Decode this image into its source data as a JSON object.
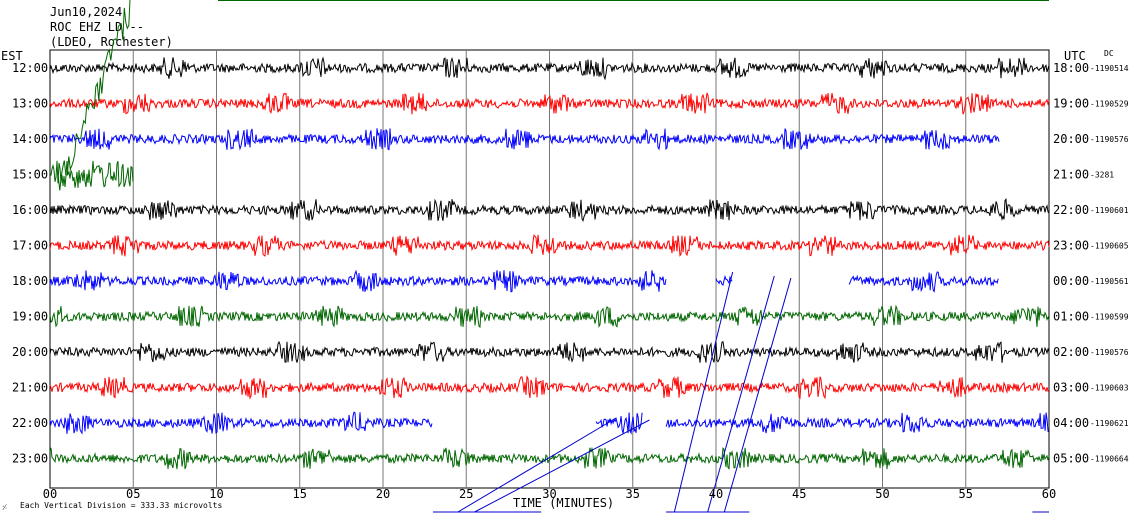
{
  "header": {
    "date": "Jun10,2024",
    "station": "ROC EHZ LD --",
    "network": "(LDEO, Rochester)"
  },
  "left_axis_label": "EST",
  "right_axis_label": "UTC",
  "dc_label": "DC",
  "xlabel": "TIME (MINUTES)",
  "footer_note": "Each Vertical Division =  333.33 microvolts",
  "chart_data": {
    "type": "line",
    "title": "",
    "xlabel": "TIME (MINUTES)",
    "xlim": [
      0,
      60
    ],
    "x_ticks": [
      "00",
      "05",
      "10",
      "15",
      "20",
      "25",
      "30",
      "35",
      "40",
      "45",
      "50",
      "55",
      "60"
    ],
    "grid": "vertical lines every 5 minutes",
    "colors": {
      "black": "#000000",
      "red": "#ff0000",
      "blue": "#0000ff",
      "green": "#006600"
    },
    "traces": [
      {
        "est": "12:00",
        "utc": "18:00",
        "dc": "-1190514",
        "color": "black",
        "segments": [
          [
            0,
            60
          ]
        ]
      },
      {
        "est": "13:00",
        "utc": "19:00",
        "dc": "-1190529",
        "color": "red",
        "segments": [
          [
            0,
            60
          ]
        ]
      },
      {
        "est": "14:00",
        "utc": "20:00",
        "dc": "-1190576",
        "color": "blue",
        "segments": [
          [
            0,
            57
          ]
        ]
      },
      {
        "est": "15:00",
        "utc": "21:00",
        "dc": "-3281",
        "color": "green",
        "segments": [
          [
            0,
            5
          ]
        ]
      },
      {
        "est": "16:00",
        "utc": "22:00",
        "dc": "-1190601",
        "color": "black",
        "segments": [
          [
            0,
            60
          ]
        ]
      },
      {
        "est": "17:00",
        "utc": "23:00",
        "dc": "-1190605",
        "color": "red",
        "segments": [
          [
            0,
            60
          ]
        ]
      },
      {
        "est": "18:00",
        "utc": "00:00",
        "dc": "-1190561",
        "color": "blue",
        "segments": [
          [
            0,
            37
          ],
          [
            40,
            41
          ],
          [
            48,
            57
          ]
        ]
      },
      {
        "est": "19:00",
        "utc": "01:00",
        "dc": "-1190599",
        "color": "green",
        "segments": [
          [
            0,
            60
          ]
        ]
      },
      {
        "est": "20:00",
        "utc": "02:00",
        "dc": "-1190576",
        "color": "black",
        "segments": [
          [
            0,
            60
          ]
        ]
      },
      {
        "est": "21:00",
        "utc": "03:00",
        "dc": "-1190603",
        "color": "red",
        "segments": [
          [
            0,
            60
          ]
        ]
      },
      {
        "est": "22:00",
        "utc": "04:00",
        "dc": "-1190621",
        "color": "blue",
        "segments": [
          [
            0,
            23
          ],
          [
            32.8,
            35.6
          ],
          [
            37,
            60
          ]
        ]
      },
      {
        "est": "23:00",
        "utc": "05:00",
        "dc": "-1190664",
        "color": "green",
        "segments": [
          [
            0,
            60
          ]
        ]
      }
    ]
  }
}
